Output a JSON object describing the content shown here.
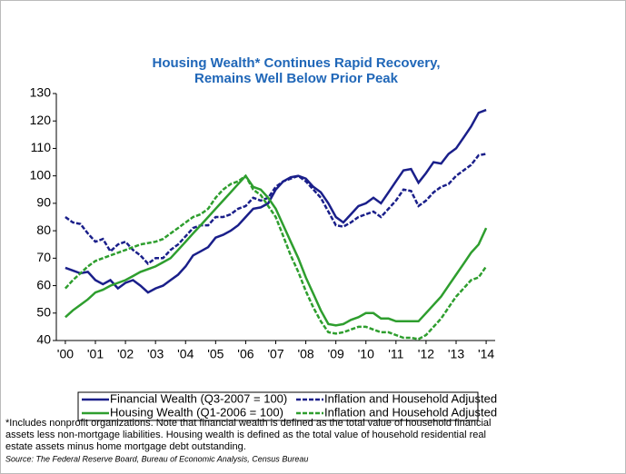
{
  "chart_data": {
    "type": "line",
    "title": [
      "Housing Wealth* Continues Rapid Recovery,",
      "Remains Well Below Prior Peak"
    ],
    "x": [
      2000,
      2000.25,
      2000.5,
      2000.75,
      2001,
      2001.25,
      2001.5,
      2001.75,
      2002,
      2002.25,
      2002.5,
      2002.75,
      2003,
      2003.25,
      2003.5,
      2003.75,
      2004,
      2004.25,
      2004.5,
      2004.75,
      2005,
      2005.25,
      2005.5,
      2005.75,
      2006,
      2006.25,
      2006.5,
      2006.75,
      2007,
      2007.25,
      2007.5,
      2007.75,
      2008,
      2008.25,
      2008.5,
      2008.75,
      2009,
      2009.25,
      2009.5,
      2009.75,
      2010,
      2010.25,
      2010.5,
      2010.75,
      2011,
      2011.25,
      2011.5,
      2011.75,
      2012,
      2012.25,
      2012.5,
      2012.75,
      2013,
      2013.25,
      2013.5,
      2013.75,
      2014
    ],
    "series": [
      {
        "name": "Financial Wealth (Q3-2007 = 100)",
        "color": "#1a1f8a",
        "dashed": false,
        "values": [
          66.5,
          65.5,
          64.5,
          65,
          62,
          60.5,
          62,
          59,
          61,
          62,
          60,
          57.5,
          59,
          60,
          62,
          64,
          67,
          71,
          72.5,
          74,
          77.5,
          78.5,
          80,
          82,
          85,
          88,
          88.5,
          90,
          95,
          98,
          99.5,
          100,
          99,
          96,
          94,
          90,
          85,
          83,
          86,
          89,
          90,
          92,
          90,
          94,
          98,
          102,
          102.5,
          97.5,
          101,
          105,
          104.5,
          108,
          110,
          114,
          118,
          123,
          124
        ]
      },
      {
        "name": "Inflation and Household Adjusted",
        "color": "#1a1f8a",
        "dashed": true,
        "values": [
          85,
          83,
          82.5,
          79,
          76,
          77,
          72.5,
          75,
          76,
          73,
          71,
          68,
          70,
          70,
          73,
          75,
          78,
          81,
          82,
          82,
          85,
          85,
          86,
          88,
          89,
          92,
          91,
          92,
          96,
          98,
          99,
          100,
          98,
          95,
          92,
          87,
          82,
          81.5,
          83,
          85,
          86,
          87,
          85,
          88,
          91,
          95,
          94.5,
          89,
          91,
          94,
          96,
          97,
          100,
          102,
          104,
          107.5,
          108
        ]
      },
      {
        "name": "Housing Wealth (Q1-2006 = 100)",
        "color": "#2e9e2e",
        "dashed": false,
        "values": [
          48.5,
          51,
          53,
          55,
          57.5,
          58.5,
          60,
          61,
          62,
          63.5,
          65,
          66,
          67,
          68.5,
          70,
          73,
          76,
          79,
          82,
          85,
          88,
          91,
          94,
          97,
          100,
          96,
          95,
          92,
          88,
          82,
          76,
          70,
          63,
          57,
          51,
          46,
          45.5,
          46,
          47.5,
          48.5,
          50,
          50,
          48,
          48,
          47,
          47,
          47,
          47,
          50,
          53,
          56,
          60,
          64,
          68,
          72,
          75,
          81
        ]
      },
      {
        "name": "Inflation and Household Adjusted",
        "color": "#2e9e2e",
        "dashed": true,
        "values": [
          59,
          62,
          64.5,
          67,
          69,
          70,
          71,
          72,
          73,
          74,
          75,
          75.5,
          76,
          77,
          79,
          81,
          83,
          85,
          86,
          88,
          92,
          95,
          97,
          98,
          100,
          95,
          93,
          89,
          85,
          78,
          71,
          65,
          58,
          52,
          47,
          43,
          42.5,
          43,
          44,
          45,
          45,
          44,
          43,
          43,
          42,
          41,
          41,
          40.5,
          42,
          45,
          48,
          52,
          56,
          59,
          62,
          63,
          67
        ]
      }
    ],
    "xlim": [
      1999.7,
      2014.3
    ],
    "xticks": [
      {
        "value": 2000,
        "label": "'00"
      },
      {
        "value": 2001,
        "label": "'01"
      },
      {
        "value": 2002,
        "label": "'02"
      },
      {
        "value": 2003,
        "label": "'03"
      },
      {
        "value": 2004,
        "label": "'04"
      },
      {
        "value": 2005,
        "label": "'05"
      },
      {
        "value": 2006,
        "label": "'06"
      },
      {
        "value": 2007,
        "label": "'07"
      },
      {
        "value": 2008,
        "label": "'08"
      },
      {
        "value": 2009,
        "label": "'09"
      },
      {
        "value": 2010,
        "label": "'10"
      },
      {
        "value": 2011,
        "label": "'11"
      },
      {
        "value": 2012,
        "label": "'12"
      },
      {
        "value": 2013,
        "label": "'13"
      },
      {
        "value": 2014,
        "label": "'14"
      }
    ],
    "ylim": [
      40,
      130
    ],
    "yticks": [
      40,
      50,
      60,
      70,
      80,
      90,
      100,
      110,
      120,
      130
    ],
    "footnote": [
      "*Includes nonprofit organizations. Note that financial wealth is defined as the total value of household financial",
      "assets less non-mortgage liabilities. Housing wealth is defined as the total value of household residential real",
      "estate assets minus home mortgage debt outstanding."
    ],
    "source": "Source: The Federal Reserve Board, Bureau of Economic Analysis, Census Bureau"
  }
}
